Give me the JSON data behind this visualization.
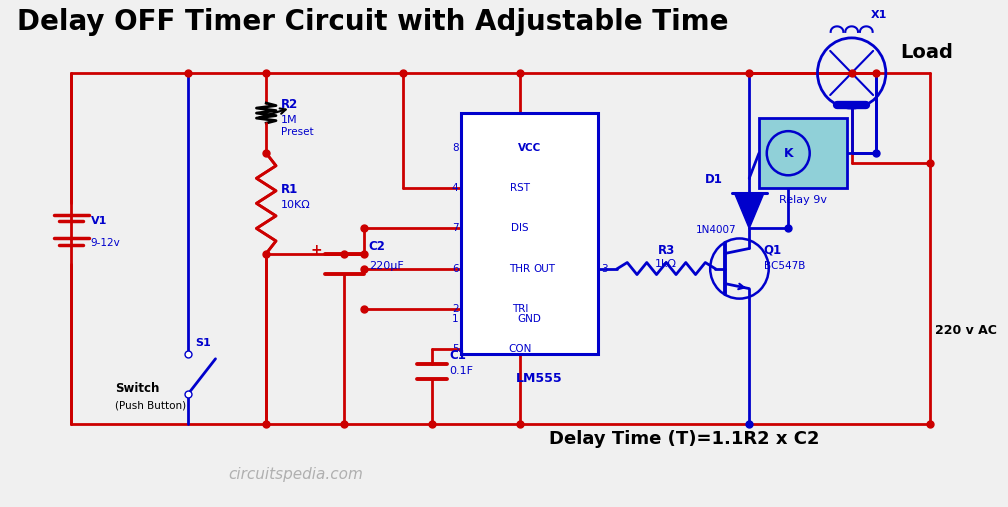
{
  "title": "Delay OFF Timer Circuit with Adjustable Time",
  "title_fontsize": 20,
  "title_fontweight": "bold",
  "bg": "#f0f0f0",
  "rc": "#cc0000",
  "bc": "#0000cc",
  "bk": "#000000",
  "relay_fill": "#90d0d8",
  "watermark": "circuitspedia.com",
  "formula": "Delay Time (T)=1.1R2 x C2",
  "ac_label": "220 v AC",
  "lw": 2.0,
  "lw_thick": 2.8,
  "dot_size": 5
}
